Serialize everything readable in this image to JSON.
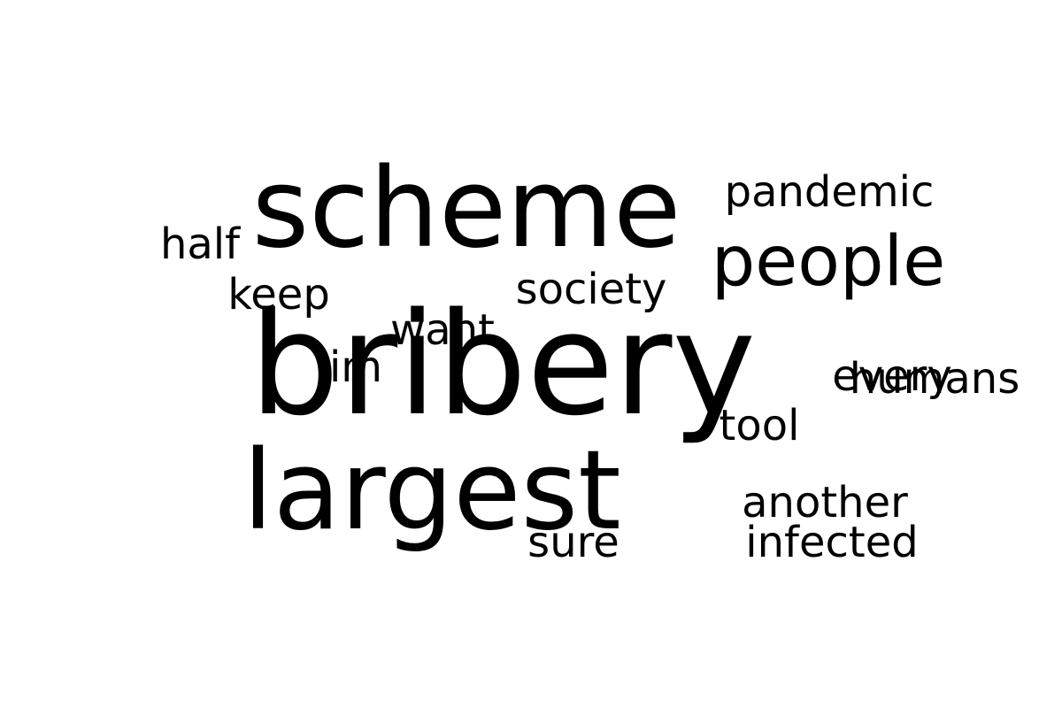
{
  "word_cloud": {
    "background": "#ffffff",
    "words": [
      {
        "text": "bribery",
        "color": "#2c718e",
        "orientation": "horizontal"
      },
      {
        "text": "scheme",
        "color": "#e5e419",
        "orientation": "horizontal"
      },
      {
        "text": "largest",
        "color": "#2eb37c",
        "orientation": "horizontal"
      },
      {
        "text": "people",
        "color": "#433e85",
        "orientation": "horizontal"
      },
      {
        "text": "pandemic",
        "color": "#21a685",
        "orientation": "horizontal"
      },
      {
        "text": "society",
        "color": "#3e4989",
        "orientation": "horizontal"
      },
      {
        "text": "keep",
        "color": "#2d708e",
        "orientation": "horizontal"
      },
      {
        "text": "half",
        "color": "#33638d",
        "orientation": "vertical"
      },
      {
        "text": "want",
        "color": "#28ae80",
        "orientation": "vertical"
      },
      {
        "text": "im",
        "color": "#b8de29",
        "orientation": "horizontal"
      },
      {
        "text": "every",
        "color": "#404688",
        "orientation": "vertical"
      },
      {
        "text": "humans",
        "color": "#38b977",
        "orientation": "vertical"
      },
      {
        "text": "tool",
        "color": "#f1e51d",
        "orientation": "vertical"
      },
      {
        "text": "another",
        "color": "#24878e",
        "orientation": "horizontal"
      },
      {
        "text": "sure",
        "color": "#c0df25",
        "orientation": "horizontal"
      },
      {
        "text": "infected",
        "color": "#6ece58",
        "orientation": "horizontal"
      }
    ]
  }
}
